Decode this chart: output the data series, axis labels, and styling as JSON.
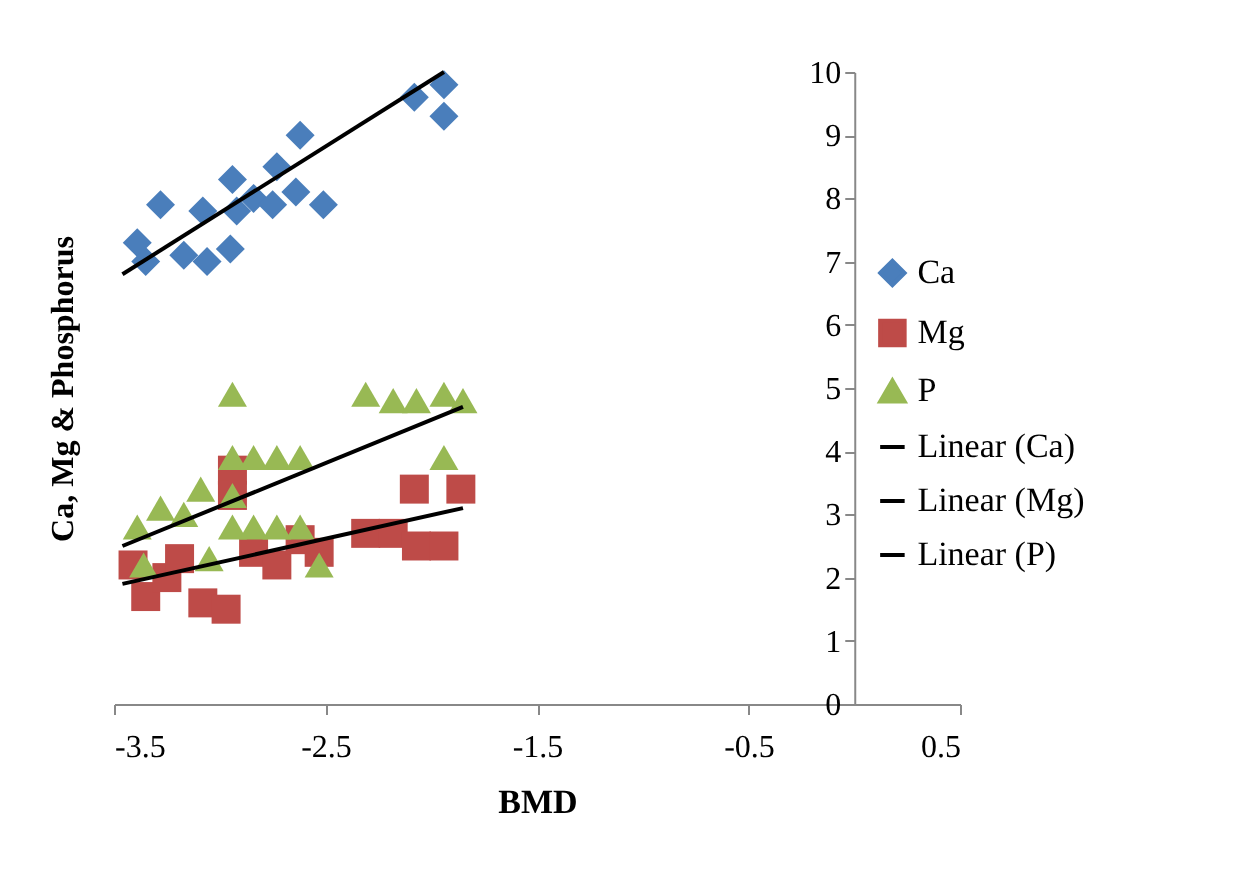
{
  "chart_data": {
    "type": "scatter",
    "xlabel": "BMD",
    "ylabel": "Ca, Mg & Phosphorus",
    "xlim": [
      -3.5,
      0.5
    ],
    "xticks": [
      -3.5,
      -2.5,
      -1.5,
      -0.5,
      0.5
    ],
    "ylim": [
      0,
      10
    ],
    "yticks": [
      0,
      1,
      2,
      3,
      4,
      5,
      6,
      7,
      8,
      9,
      10
    ],
    "legend": "right",
    "grid": false,
    "series": [
      {
        "name": "Ca",
        "marker": "diamond",
        "color": "#4a7ebb",
        "x": [
          -3.39,
          -3.28,
          -3.35,
          -3.17,
          -3.08,
          -3.06,
          -2.95,
          -2.94,
          -2.92,
          -2.84,
          -2.75,
          -2.73,
          -2.64,
          -2.62,
          -2.51,
          -2.08,
          -1.94,
          -1.94
        ],
        "values": [
          7.3,
          7.9,
          7.0,
          7.1,
          7.8,
          7.0,
          7.2,
          8.3,
          7.8,
          8.0,
          7.9,
          8.5,
          8.1,
          9.0,
          7.9,
          9.6,
          9.8,
          9.3
        ]
      },
      {
        "name": "Mg",
        "marker": "square",
        "color": "#be4b48",
        "x": [
          -3.41,
          -3.35,
          -3.25,
          -3.19,
          -3.08,
          -2.97,
          -2.94,
          -2.94,
          -2.84,
          -2.73,
          -2.62,
          -2.53,
          -2.31,
          -2.18,
          -2.08,
          -2.07,
          -1.94,
          -1.86
        ],
        "values": [
          2.2,
          1.7,
          2.0,
          2.3,
          1.6,
          1.5,
          3.7,
          3.3,
          2.4,
          2.2,
          2.6,
          2.4,
          2.7,
          2.7,
          3.4,
          2.5,
          2.5,
          3.4
        ]
      },
      {
        "name": "P",
        "marker": "triangle",
        "color": "#98b954",
        "x": [
          -3.39,
          -3.28,
          -3.36,
          -3.17,
          -3.09,
          -2.94,
          -2.94,
          -2.94,
          -2.94,
          -3.05,
          -2.84,
          -2.73,
          -2.62,
          -2.84,
          -2.73,
          -2.62,
          -2.53,
          -2.31,
          -2.18,
          -2.07,
          -1.94,
          -1.85,
          -1.94
        ],
        "values": [
          2.8,
          3.1,
          2.2,
          3.0,
          3.4,
          4.9,
          3.9,
          3.3,
          2.8,
          2.3,
          3.9,
          3.9,
          3.9,
          2.8,
          2.8,
          2.8,
          2.2,
          4.9,
          4.8,
          4.8,
          4.9,
          4.8,
          3.9
        ]
      },
      {
        "name": "Linear (Ca)",
        "type": "line",
        "line_style": "solid",
        "color": "#000000",
        "x": [
          -3.46,
          -1.94
        ],
        "values": [
          6.8,
          10.0
        ]
      },
      {
        "name": "Linear (Mg)",
        "type": "line",
        "line_style": "solid",
        "color": "#000000",
        "x": [
          -3.46,
          -1.85
        ],
        "values": [
          1.9,
          3.1
        ]
      },
      {
        "name": "Linear (P)",
        "type": "line",
        "line_style": "solid",
        "color": "#000000",
        "x": [
          -3.46,
          -1.85
        ],
        "values": [
          2.5,
          4.7
        ]
      }
    ]
  }
}
